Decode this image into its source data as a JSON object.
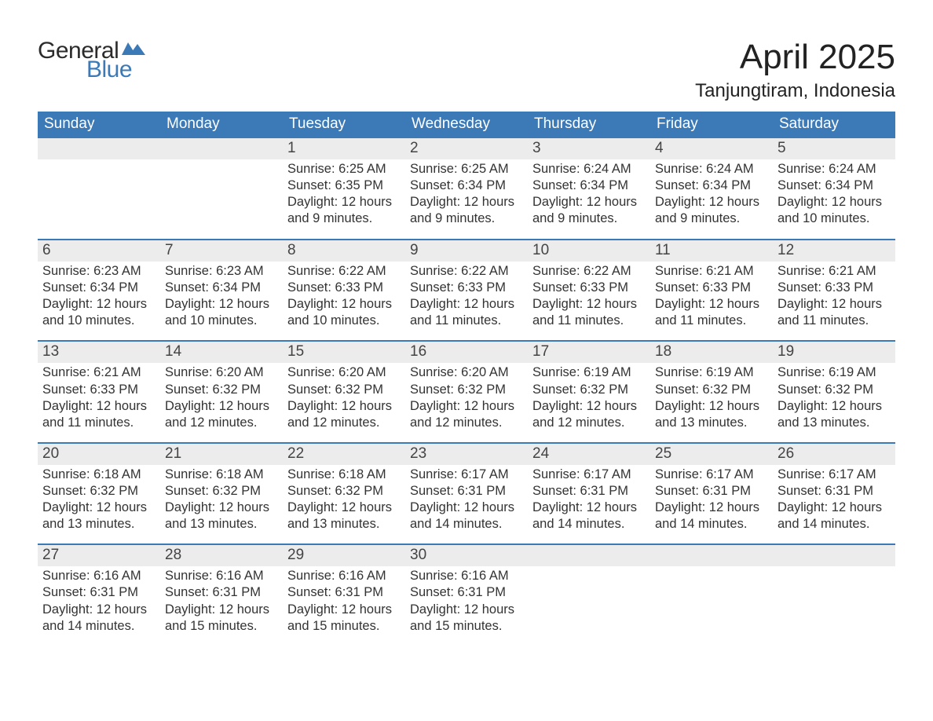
{
  "logo": {
    "word1": "General",
    "word2": "Blue"
  },
  "title": "April 2025",
  "location": "Tanjungtiram, Indonesia",
  "colors": {
    "header_bg": "#3b79b7",
    "header_text": "#ffffff",
    "daynum_bg": "#ececec",
    "text": "#333333",
    "border": "#3b79b7",
    "logo_dark": "#2b2b2b",
    "logo_blue": "#3b79b7"
  },
  "day_of_week": [
    "Sunday",
    "Monday",
    "Tuesday",
    "Wednesday",
    "Thursday",
    "Friday",
    "Saturday"
  ],
  "labels": {
    "sunrise": "Sunrise: ",
    "sunset": "Sunset: ",
    "daylight": "Daylight: "
  },
  "weeks": [
    [
      {
        "empty": true
      },
      {
        "empty": true
      },
      {
        "n": "1",
        "sunrise": "6:25 AM",
        "sunset": "6:35 PM",
        "daylight": "12 hours and 9 minutes."
      },
      {
        "n": "2",
        "sunrise": "6:25 AM",
        "sunset": "6:34 PM",
        "daylight": "12 hours and 9 minutes."
      },
      {
        "n": "3",
        "sunrise": "6:24 AM",
        "sunset": "6:34 PM",
        "daylight": "12 hours and 9 minutes."
      },
      {
        "n": "4",
        "sunrise": "6:24 AM",
        "sunset": "6:34 PM",
        "daylight": "12 hours and 9 minutes."
      },
      {
        "n": "5",
        "sunrise": "6:24 AM",
        "sunset": "6:34 PM",
        "daylight": "12 hours and 10 minutes."
      }
    ],
    [
      {
        "n": "6",
        "sunrise": "6:23 AM",
        "sunset": "6:34 PM",
        "daylight": "12 hours and 10 minutes."
      },
      {
        "n": "7",
        "sunrise": "6:23 AM",
        "sunset": "6:34 PM",
        "daylight": "12 hours and 10 minutes."
      },
      {
        "n": "8",
        "sunrise": "6:22 AM",
        "sunset": "6:33 PM",
        "daylight": "12 hours and 10 minutes."
      },
      {
        "n": "9",
        "sunrise": "6:22 AM",
        "sunset": "6:33 PM",
        "daylight": "12 hours and 11 minutes."
      },
      {
        "n": "10",
        "sunrise": "6:22 AM",
        "sunset": "6:33 PM",
        "daylight": "12 hours and 11 minutes."
      },
      {
        "n": "11",
        "sunrise": "6:21 AM",
        "sunset": "6:33 PM",
        "daylight": "12 hours and 11 minutes."
      },
      {
        "n": "12",
        "sunrise": "6:21 AM",
        "sunset": "6:33 PM",
        "daylight": "12 hours and 11 minutes."
      }
    ],
    [
      {
        "n": "13",
        "sunrise": "6:21 AM",
        "sunset": "6:33 PM",
        "daylight": "12 hours and 11 minutes."
      },
      {
        "n": "14",
        "sunrise": "6:20 AM",
        "sunset": "6:32 PM",
        "daylight": "12 hours and 12 minutes."
      },
      {
        "n": "15",
        "sunrise": "6:20 AM",
        "sunset": "6:32 PM",
        "daylight": "12 hours and 12 minutes."
      },
      {
        "n": "16",
        "sunrise": "6:20 AM",
        "sunset": "6:32 PM",
        "daylight": "12 hours and 12 minutes."
      },
      {
        "n": "17",
        "sunrise": "6:19 AM",
        "sunset": "6:32 PM",
        "daylight": "12 hours and 12 minutes."
      },
      {
        "n": "18",
        "sunrise": "6:19 AM",
        "sunset": "6:32 PM",
        "daylight": "12 hours and 13 minutes."
      },
      {
        "n": "19",
        "sunrise": "6:19 AM",
        "sunset": "6:32 PM",
        "daylight": "12 hours and 13 minutes."
      }
    ],
    [
      {
        "n": "20",
        "sunrise": "6:18 AM",
        "sunset": "6:32 PM",
        "daylight": "12 hours and 13 minutes."
      },
      {
        "n": "21",
        "sunrise": "6:18 AM",
        "sunset": "6:32 PM",
        "daylight": "12 hours and 13 minutes."
      },
      {
        "n": "22",
        "sunrise": "6:18 AM",
        "sunset": "6:32 PM",
        "daylight": "12 hours and 13 minutes."
      },
      {
        "n": "23",
        "sunrise": "6:17 AM",
        "sunset": "6:31 PM",
        "daylight": "12 hours and 14 minutes."
      },
      {
        "n": "24",
        "sunrise": "6:17 AM",
        "sunset": "6:31 PM",
        "daylight": "12 hours and 14 minutes."
      },
      {
        "n": "25",
        "sunrise": "6:17 AM",
        "sunset": "6:31 PM",
        "daylight": "12 hours and 14 minutes."
      },
      {
        "n": "26",
        "sunrise": "6:17 AM",
        "sunset": "6:31 PM",
        "daylight": "12 hours and 14 minutes."
      }
    ],
    [
      {
        "n": "27",
        "sunrise": "6:16 AM",
        "sunset": "6:31 PM",
        "daylight": "12 hours and 14 minutes."
      },
      {
        "n": "28",
        "sunrise": "6:16 AM",
        "sunset": "6:31 PM",
        "daylight": "12 hours and 15 minutes."
      },
      {
        "n": "29",
        "sunrise": "6:16 AM",
        "sunset": "6:31 PM",
        "daylight": "12 hours and 15 minutes."
      },
      {
        "n": "30",
        "sunrise": "6:16 AM",
        "sunset": "6:31 PM",
        "daylight": "12 hours and 15 minutes."
      },
      {
        "empty": true
      },
      {
        "empty": true
      },
      {
        "empty": true
      }
    ]
  ]
}
